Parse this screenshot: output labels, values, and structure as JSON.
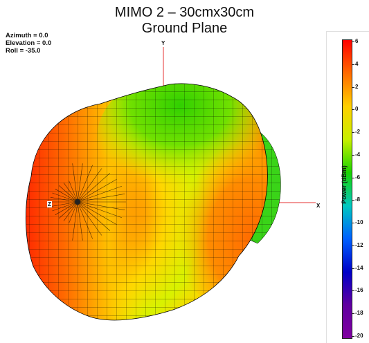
{
  "title": {
    "line1": "MIMO 2 – 30cmx30cm",
    "line2": "Ground Plane"
  },
  "view": {
    "azimuth": "Azimuth = 0.0",
    "elevation": "Elevation = 0.0",
    "roll": "Roll = -35.0"
  },
  "axes": {
    "x": "X",
    "y": "Y",
    "z": "Z",
    "color": "#e53030"
  },
  "colorbar": {
    "label": "Power (dBm)",
    "min": -20,
    "max": 6,
    "ticks": [
      "6",
      "4",
      "2",
      "0",
      "-2",
      "-4",
      "-6",
      "-8",
      "-10",
      "-12",
      "-14",
      "-16",
      "-18",
      "-20"
    ],
    "colormap": [
      "#ff0000",
      "#ff6a00",
      "#ffd000",
      "#c8f000",
      "#19d400",
      "#00c8c0",
      "#0060ff",
      "#0000c8",
      "#6000a0",
      "#8000a0"
    ]
  }
}
